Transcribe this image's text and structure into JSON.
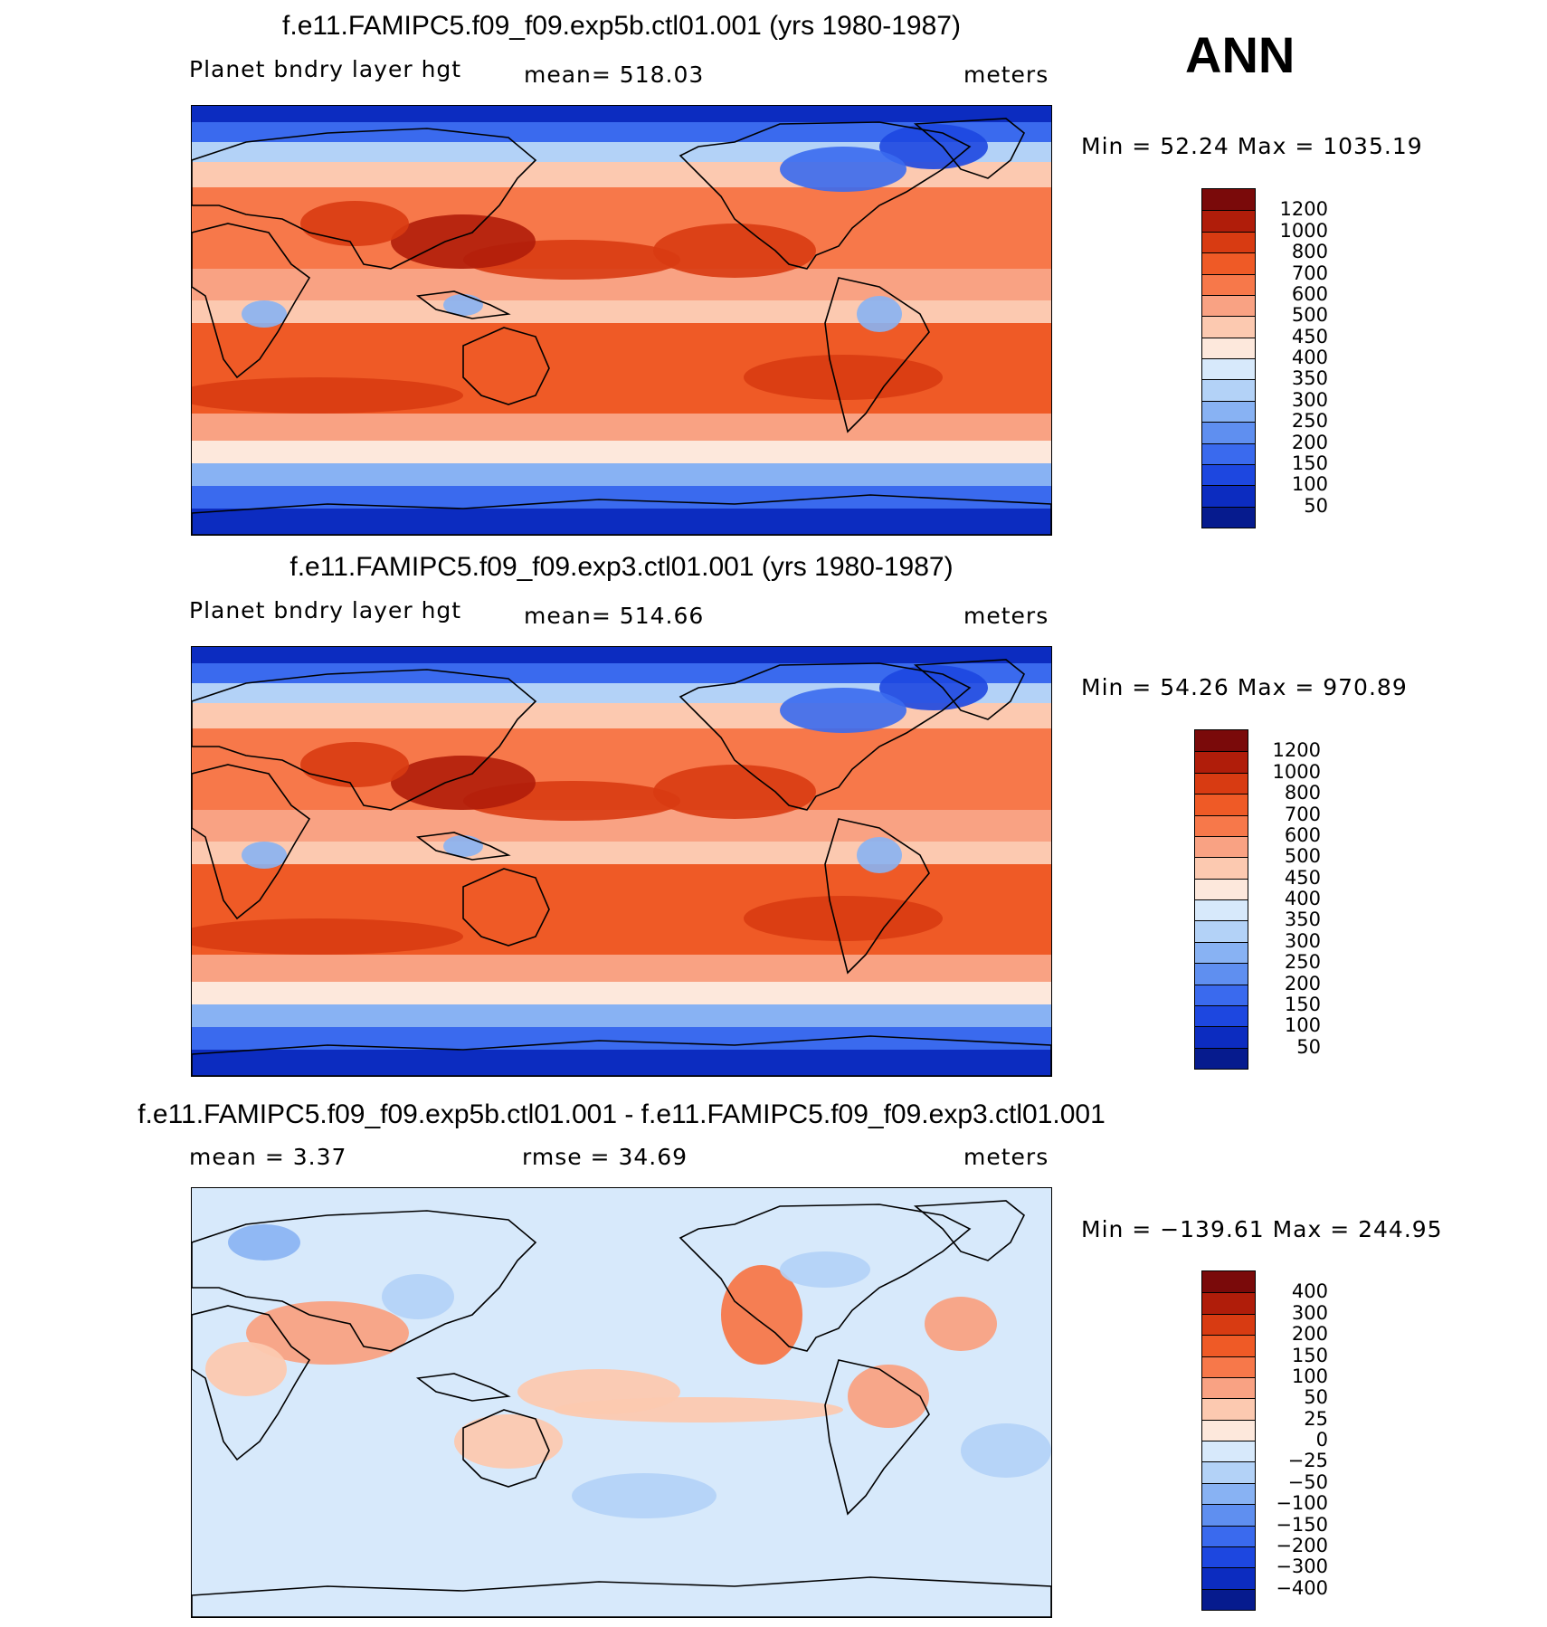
{
  "season": "ANN",
  "panels": [
    {
      "title": "f.e11.FAMIPC5.f09_f09.exp5b.ctl01.001 (yrs 1980-1987)",
      "field": "Planet bndry layer hgt",
      "stat": "mean=  518.03",
      "units": "meters",
      "minmax": "Min =   52.24 Max = 1035.19",
      "levels": [
        "1200",
        "1000",
        "800",
        "700",
        "600",
        "500",
        "450",
        "400",
        "350",
        "300",
        "250",
        "200",
        "150",
        "100",
        "50"
      ],
      "colors": [
        "#7a0a0a",
        "#b01d0a",
        "#d83b12",
        "#ef5a26",
        "#f7784a",
        "#f9a283",
        "#fcc9b0",
        "#fde8dc",
        "#d7e9fb",
        "#b3d2f7",
        "#88b2f3",
        "#5f8ff0",
        "#3a6aee",
        "#1d47e0",
        "#0c2cc0",
        "#061b8e"
      ],
      "mean_color": "#f4845c"
    },
    {
      "title": "f.e11.FAMIPC5.f09_f09.exp3.ctl01.001 (yrs 1980-1987)",
      "field": "Planet bndry layer hgt",
      "stat": "mean=  514.66",
      "units": "meters",
      "minmax": "Min =   54.26 Max =  970.89",
      "levels": [
        "1200",
        "1000",
        "800",
        "700",
        "600",
        "500",
        "450",
        "400",
        "350",
        "300",
        "250",
        "200",
        "150",
        "100",
        "50"
      ],
      "colors": [
        "#7a0a0a",
        "#b01d0a",
        "#d83b12",
        "#ef5a26",
        "#f7784a",
        "#f9a283",
        "#fcc9b0",
        "#fde8dc",
        "#d7e9fb",
        "#b3d2f7",
        "#88b2f3",
        "#5f8ff0",
        "#3a6aee",
        "#1d47e0",
        "#0c2cc0",
        "#061b8e"
      ],
      "mean_color": "#f4845c"
    },
    {
      "title": "f.e11.FAMIPC5.f09_f09.exp5b.ctl01.001 - f.e11.FAMIPC5.f09_f09.exp3.ctl01.001",
      "field": "mean =    3.37",
      "stat": "rmse =   34.69",
      "units": "meters",
      "minmax": "Min = −139.61 Max =  244.95",
      "levels": [
        "400",
        "300",
        "200",
        "150",
        "100",
        "50",
        "25",
        "0",
        "−25",
        "−50",
        "−100",
        "−150",
        "−200",
        "−300",
        "−400"
      ],
      "colors": [
        "#7a0a0a",
        "#b01d0a",
        "#d83b12",
        "#ef5a26",
        "#f7784a",
        "#f9a283",
        "#fcc9b0",
        "#fde8dc",
        "#d7e9fb",
        "#b3d2f7",
        "#88b2f3",
        "#5f8ff0",
        "#3a6aee",
        "#1d47e0",
        "#0c2cc0",
        "#061b8e"
      ],
      "mean_color": "#d7e9fb"
    }
  ]
}
